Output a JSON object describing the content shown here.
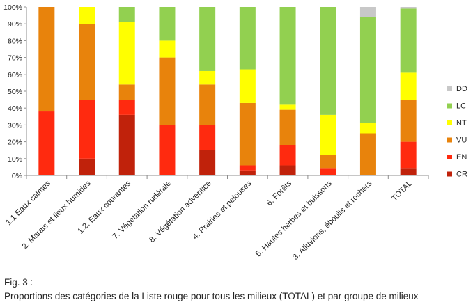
{
  "chart_data": {
    "type": "bar",
    "stacked": true,
    "percent": true,
    "title": "",
    "xlabel": "",
    "ylabel": "",
    "ylim": [
      0,
      100
    ],
    "yticks": [
      "0%",
      "10%",
      "20%",
      "30%",
      "40%",
      "50%",
      "60%",
      "70%",
      "80%",
      "90%",
      "100%"
    ],
    "grid": false,
    "legend_position": "right",
    "categories": [
      "1.1 Eaux calmes",
      "2. Marais et lieux humides",
      "1.2. Eaux courantes",
      "7. Végétation rudérale",
      "8. Végétation adventice",
      "4. Prairies et pelouses",
      "6. Forêts",
      "5. Hautes herbes et buissons",
      "3. Alluvions, éboulis et rochers",
      "TOTAL"
    ],
    "series": [
      {
        "name": "CR",
        "color": "#c0220b",
        "values": [
          0,
          10,
          36,
          0,
          15,
          3,
          6,
          0,
          0,
          4
        ]
      },
      {
        "name": "EN",
        "color": "#ff2a0f",
        "values": [
          38,
          35,
          9,
          30,
          15,
          3,
          12,
          4,
          0,
          16
        ]
      },
      {
        "name": "VU",
        "color": "#e8830c",
        "values": [
          62,
          45,
          9,
          40,
          24,
          37,
          21,
          8,
          25,
          25
        ]
      },
      {
        "name": "NT",
        "color": "#ffff00",
        "values": [
          0,
          10,
          37,
          10,
          8,
          20,
          3,
          24,
          6,
          16
        ]
      },
      {
        "name": "LC",
        "color": "#92d050",
        "values": [
          0,
          0,
          9,
          20,
          38,
          37,
          58,
          64,
          63,
          38
        ]
      },
      {
        "name": "DD",
        "color": "#c8c8c8",
        "values": [
          0,
          0,
          0,
          0,
          0,
          0,
          0,
          0,
          6,
          1
        ]
      }
    ]
  },
  "figure": {
    "label": "Fig. 3 :",
    "caption": "Proportions des catégories de la Liste rouge pour tous les milieux (TOTAL) et par groupe de milieux"
  }
}
